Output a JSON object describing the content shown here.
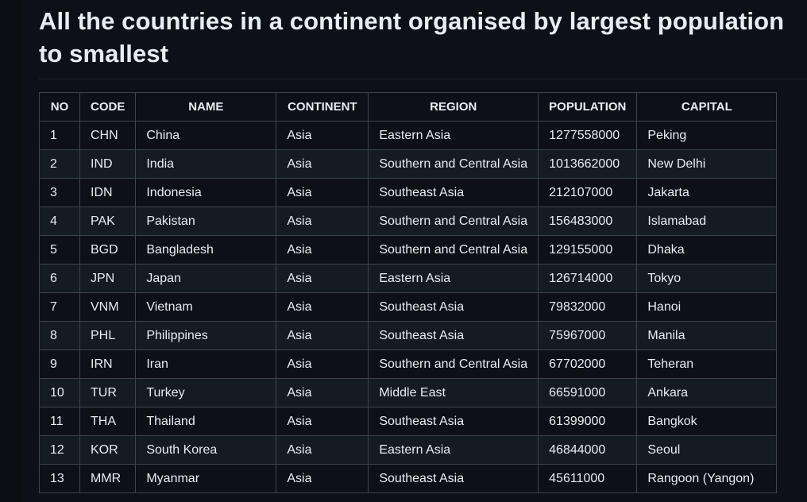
{
  "title": "All the countries in a continent organised by largest population to smallest",
  "table": {
    "headers": [
      "NO",
      "CODE",
      "NAME",
      "CONTINENT",
      "REGION",
      "POPULATION",
      "CAPITAL"
    ],
    "rows": [
      [
        "1",
        "CHN",
        "China",
        "Asia",
        "Eastern Asia",
        "1277558000",
        "Peking"
      ],
      [
        "2",
        "IND",
        "India",
        "Asia",
        "Southern and Central Asia",
        "1013662000",
        "New Delhi"
      ],
      [
        "3",
        "IDN",
        "Indonesia",
        "Asia",
        "Southeast Asia",
        "212107000",
        "Jakarta"
      ],
      [
        "4",
        "PAK",
        "Pakistan",
        "Asia",
        "Southern and Central Asia",
        "156483000",
        "Islamabad"
      ],
      [
        "5",
        "BGD",
        "Bangladesh",
        "Asia",
        "Southern and Central Asia",
        "129155000",
        "Dhaka"
      ],
      [
        "6",
        "JPN",
        "Japan",
        "Asia",
        "Eastern Asia",
        "126714000",
        "Tokyo"
      ],
      [
        "7",
        "VNM",
        "Vietnam",
        "Asia",
        "Southeast Asia",
        "79832000",
        "Hanoi"
      ],
      [
        "8",
        "PHL",
        "Philippines",
        "Asia",
        "Southeast Asia",
        "75967000",
        "Manila"
      ],
      [
        "9",
        "IRN",
        "Iran",
        "Asia",
        "Southern and Central Asia",
        "67702000",
        "Teheran"
      ],
      [
        "10",
        "TUR",
        "Turkey",
        "Asia",
        "Middle East",
        "66591000",
        "Ankara"
      ],
      [
        "11",
        "THA",
        "Thailand",
        "Asia",
        "Southeast Asia",
        "61399000",
        "Bangkok"
      ],
      [
        "12",
        "KOR",
        "South Korea",
        "Asia",
        "Eastern Asia",
        "46844000",
        "Seoul"
      ],
      [
        "13",
        "MMR",
        "Myanmar",
        "Asia",
        "Southeast Asia",
        "45611000",
        "Rangoon (Yangon)"
      ]
    ]
  },
  "colors": {
    "background": "#0d1117",
    "row_alt": "#151b23",
    "border": "#3d444d",
    "text": "#e6edf3"
  }
}
